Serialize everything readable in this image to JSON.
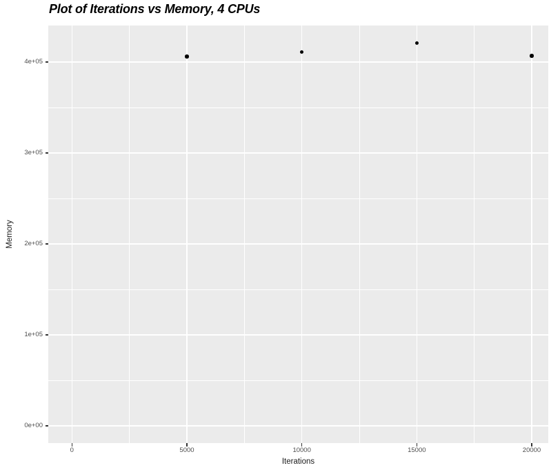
{
  "title": "Plot of Iterations vs Memory, 4 CPUs",
  "colors": {
    "page_background": "#FFFFFF",
    "panel_background": "#EBEBEB",
    "gridline": "#FFFFFF",
    "point": "#000000",
    "tick_label": "#4D4D4D",
    "tick_mark": "#333333",
    "axis_title": "#1A1A1A",
    "title_text": "#000000"
  },
  "chart_data": {
    "type": "scatter",
    "title": "Plot of Iterations vs Memory, 4 CPUs",
    "xlabel": "Iterations",
    "ylabel": "Memory",
    "points": [
      {
        "x": 5000,
        "y": 406000
      },
      {
        "x": 10000,
        "y": 411000
      },
      {
        "x": 15000,
        "y": 421000
      },
      {
        "x": 20000,
        "y": 407000
      }
    ],
    "xlim": [
      -1030,
      20720
    ],
    "ylim": [
      -18900,
      440200
    ],
    "x_breaks": {
      "values": [
        0,
        5000,
        10000,
        15000,
        20000
      ],
      "labels": [
        "0",
        "5000",
        "10000",
        "15000",
        "20000"
      ]
    },
    "y_breaks": {
      "values": [
        0,
        100000,
        200000,
        300000,
        400000
      ],
      "labels": [
        "0e+00",
        "1e+05",
        "2e+05",
        "3e+05",
        "4e+05"
      ]
    },
    "x_minor_breaks": [
      2500,
      7500,
      12500,
      17500
    ],
    "y_minor_breaks": [
      50000,
      150000,
      250000,
      350000
    ],
    "grid": true,
    "legend": "none",
    "theme": "ggplot-grey"
  }
}
